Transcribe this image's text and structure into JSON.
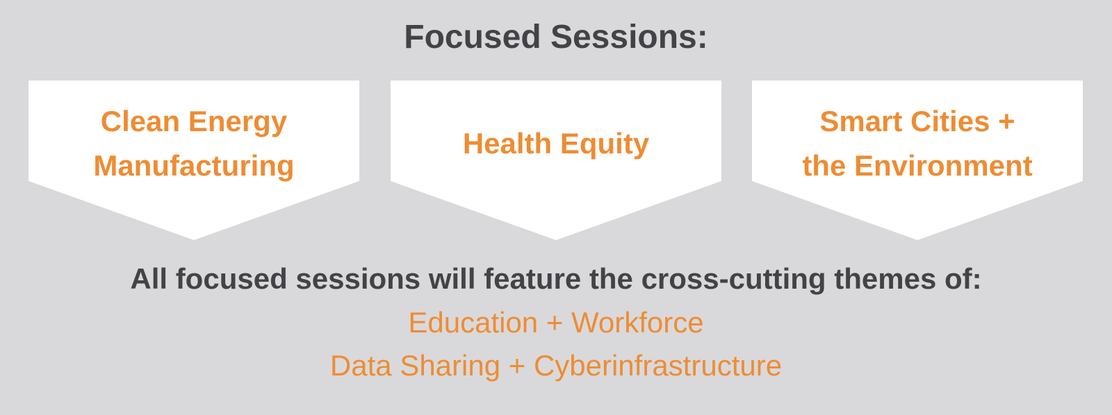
{
  "title": "Focused Sessions:",
  "sessions": [
    {
      "label": "Clean Energy\nManufacturing"
    },
    {
      "label": "Health Equity"
    },
    {
      "label": "Smart Cities +\nthe Environment"
    }
  ],
  "themes_heading": "All focused sessions will feature the cross-cutting themes of:",
  "themes": [
    "Education + Workforce",
    "Data Sharing + Cyberinfrastructure"
  ],
  "colors": {
    "background": "#d9d9db",
    "heading_text": "#434347",
    "accent": "#ee8c33",
    "card": "#ffffff"
  }
}
